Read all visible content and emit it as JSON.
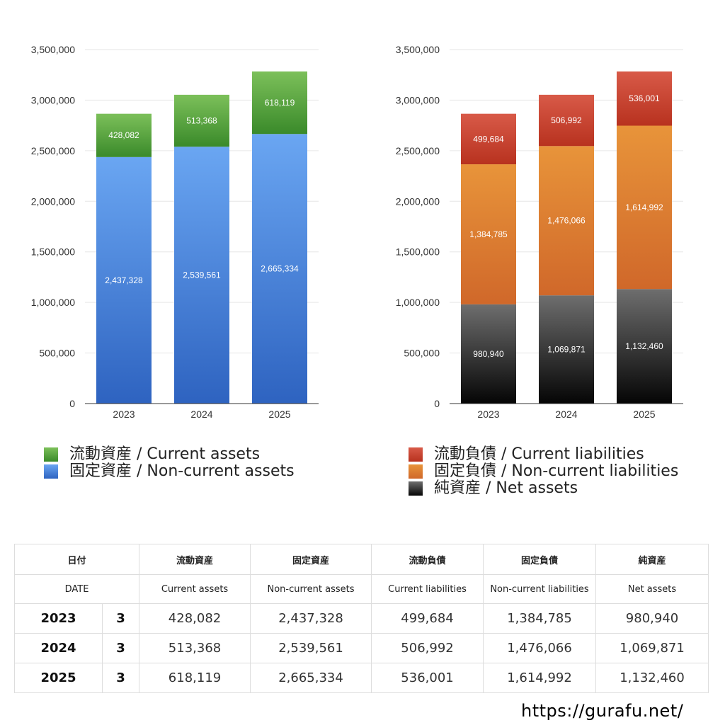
{
  "chart_data": [
    {
      "type": "bar",
      "stacked": true,
      "categories": [
        "2023",
        "2024",
        "2025"
      ],
      "series": [
        {
          "name": "固定資産 / Non-current assets",
          "values": [
            2437328,
            2539561,
            2665334
          ],
          "color_top": "#6aa6f2",
          "color_bottom": "#2e63c0"
        },
        {
          "name": "流動資産 / Current assets",
          "values": [
            428082,
            513368,
            618119
          ],
          "color_top": "#7cc05a",
          "color_bottom": "#3a8a2a"
        }
      ],
      "data_labels": [
        [
          "2,437,328",
          "2,539,561",
          "2,665,334"
        ],
        [
          "428,082",
          "513,368",
          "618,119"
        ]
      ],
      "ylim": [
        0,
        3500000
      ],
      "yticks": [
        "0",
        "500,000",
        "1,000,000",
        "1,500,000",
        "2,000,000",
        "2,500,000",
        "3,000,000",
        "3,500,000"
      ],
      "grid": true,
      "legend_position": "bottom"
    },
    {
      "type": "bar",
      "stacked": true,
      "categories": [
        "2023",
        "2024",
        "2025"
      ],
      "series": [
        {
          "name": "純資産 / Net assets",
          "values": [
            980940,
            1069871,
            1132460
          ],
          "color_top": "#6e6e6e",
          "color_bottom": "#050505"
        },
        {
          "name": "固定負債 / Non-current liabilities",
          "values": [
            1384785,
            1476066,
            1614992
          ],
          "color_top": "#e8943a",
          "color_bottom": "#d0682a"
        },
        {
          "name": "流動負債 / Current liabilities",
          "values": [
            499684,
            506992,
            536001
          ],
          "color_top": "#d85a48",
          "color_bottom": "#b8321f"
        }
      ],
      "data_labels": [
        [
          "980,940",
          "1,069,871",
          "1,132,460"
        ],
        [
          "1,384,785",
          "1,476,066",
          "1,614,992"
        ],
        [
          "499,684",
          "506,992",
          "536,001"
        ]
      ],
      "ylim": [
        0,
        3500000
      ],
      "yticks": [
        "0",
        "500,000",
        "1,000,000",
        "1,500,000",
        "2,000,000",
        "2,500,000",
        "3,000,000",
        "3,500,000"
      ],
      "grid": true,
      "legend_position": "bottom"
    }
  ],
  "legend_left": [
    {
      "label": "流動資産 / Current assets",
      "color": "#5fae45"
    },
    {
      "label": "固定資産 / Non-current assets",
      "color": "#4a86dc"
    }
  ],
  "legend_right": [
    {
      "label": "流動負債 / Current liabilities",
      "color": "#d04a38"
    },
    {
      "label": "固定負債 / Non-current liabilities",
      "color": "#e07e30"
    },
    {
      "label": "純資産 / Net assets",
      "color": "#222222"
    }
  ],
  "table": {
    "header_jp": [
      "日付",
      "流動資産",
      "固定資産",
      "流動負債",
      "固定負債",
      "純資産"
    ],
    "header_en": [
      "DATE",
      "Current assets",
      "Non-current assets",
      "Current liabilities",
      "Non-current liabilities",
      "Net assets"
    ],
    "rows": [
      {
        "year": "2023",
        "month": "3",
        "values": [
          "428,082",
          "2,437,328",
          "499,684",
          "1,384,785",
          "980,940"
        ]
      },
      {
        "year": "2024",
        "month": "3",
        "values": [
          "513,368",
          "2,539,561",
          "506,992",
          "1,476,066",
          "1,069,871"
        ]
      },
      {
        "year": "2025",
        "month": "3",
        "values": [
          "618,119",
          "2,665,334",
          "536,001",
          "1,614,992",
          "1,132,460"
        ]
      }
    ]
  },
  "footer_url": "https://gurafu.net/"
}
